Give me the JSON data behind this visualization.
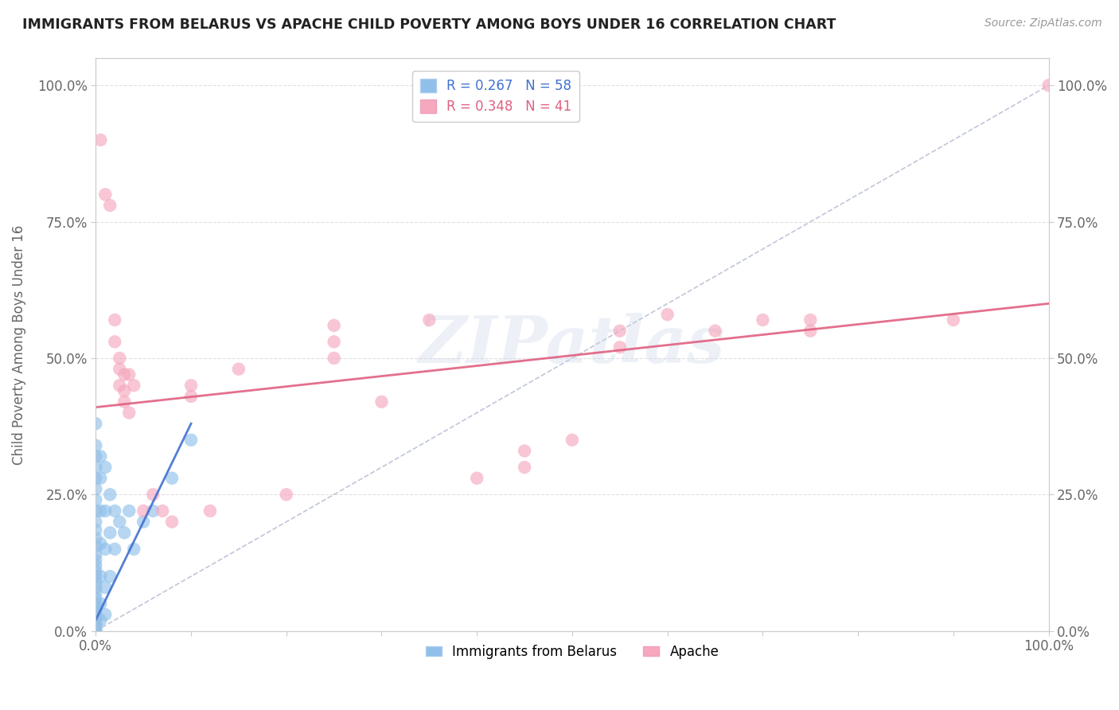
{
  "title": "IMMIGRANTS FROM BELARUS VS APACHE CHILD POVERTY AMONG BOYS UNDER 16 CORRELATION CHART",
  "source": "Source: ZipAtlas.com",
  "xlabel": "",
  "ylabel": "Child Poverty Among Boys Under 16",
  "xlim": [
    0,
    100
  ],
  "ylim": [
    0,
    105
  ],
  "xticks": [
    0,
    10,
    20,
    30,
    40,
    50,
    60,
    70,
    80,
    90,
    100
  ],
  "yticks": [
    0,
    25,
    50,
    75,
    100
  ],
  "xticklabels_show": [
    "0.0%",
    "",
    "",
    "",
    "",
    "",
    "",
    "",
    "",
    "",
    "100.0%"
  ],
  "yticklabels": [
    "0.0%",
    "25.0%",
    "50.0%",
    "75.0%",
    "100.0%"
  ],
  "legend_labels": [
    "Immigrants from Belarus",
    "Apache"
  ],
  "blue_R": 0.267,
  "blue_N": 58,
  "pink_R": 0.348,
  "pink_N": 41,
  "blue_color": "#90c0ea",
  "pink_color": "#f5a8be",
  "blue_line_color": "#4070d0",
  "pink_line_color": "#e06080",
  "diag_line_color": "#b0b8d0",
  "watermark": "ZIPatlas",
  "background_color": "#ffffff",
  "grid_color": "#e0e0e0",
  "blue_scatter": [
    [
      0.0,
      38.0
    ],
    [
      0.0,
      34.0
    ],
    [
      0.0,
      32.0
    ],
    [
      0.0,
      30.0
    ],
    [
      0.0,
      28.0
    ],
    [
      0.0,
      26.0
    ],
    [
      0.0,
      24.0
    ],
    [
      0.0,
      22.0
    ],
    [
      0.0,
      20.0
    ],
    [
      0.0,
      18.5
    ],
    [
      0.0,
      17.0
    ],
    [
      0.0,
      15.5
    ],
    [
      0.0,
      14.0
    ],
    [
      0.0,
      13.0
    ],
    [
      0.0,
      12.0
    ],
    [
      0.0,
      11.0
    ],
    [
      0.0,
      10.0
    ],
    [
      0.0,
      9.0
    ],
    [
      0.0,
      8.0
    ],
    [
      0.0,
      7.0
    ],
    [
      0.0,
      6.0
    ],
    [
      0.0,
      5.0
    ],
    [
      0.0,
      4.5
    ],
    [
      0.0,
      4.0
    ],
    [
      0.0,
      3.5
    ],
    [
      0.0,
      3.0
    ],
    [
      0.0,
      2.5
    ],
    [
      0.0,
      2.0
    ],
    [
      0.0,
      1.5
    ],
    [
      0.0,
      1.0
    ],
    [
      0.0,
      0.5
    ],
    [
      0.0,
      0.2
    ],
    [
      0.0,
      0.0
    ],
    [
      0.5,
      32.0
    ],
    [
      0.5,
      28.0
    ],
    [
      0.5,
      22.0
    ],
    [
      0.5,
      16.0
    ],
    [
      0.5,
      10.0
    ],
    [
      0.5,
      5.0
    ],
    [
      0.5,
      2.0
    ],
    [
      1.0,
      30.0
    ],
    [
      1.0,
      22.0
    ],
    [
      1.0,
      15.0
    ],
    [
      1.0,
      8.0
    ],
    [
      1.0,
      3.0
    ],
    [
      1.5,
      25.0
    ],
    [
      1.5,
      18.0
    ],
    [
      1.5,
      10.0
    ],
    [
      2.0,
      22.0
    ],
    [
      2.0,
      15.0
    ],
    [
      2.5,
      20.0
    ],
    [
      3.0,
      18.0
    ],
    [
      3.5,
      22.0
    ],
    [
      4.0,
      15.0
    ],
    [
      5.0,
      20.0
    ],
    [
      6.0,
      22.0
    ],
    [
      8.0,
      28.0
    ],
    [
      10.0,
      35.0
    ]
  ],
  "pink_scatter": [
    [
      0.5,
      90.0
    ],
    [
      1.0,
      80.0
    ],
    [
      1.5,
      78.0
    ],
    [
      2.0,
      57.0
    ],
    [
      2.0,
      53.0
    ],
    [
      2.5,
      50.0
    ],
    [
      2.5,
      48.0
    ],
    [
      2.5,
      45.0
    ],
    [
      3.0,
      47.0
    ],
    [
      3.0,
      44.0
    ],
    [
      3.0,
      42.0
    ],
    [
      3.5,
      40.0
    ],
    [
      3.5,
      47.0
    ],
    [
      4.0,
      45.0
    ],
    [
      5.0,
      22.0
    ],
    [
      6.0,
      25.0
    ],
    [
      7.0,
      22.0
    ],
    [
      8.0,
      20.0
    ],
    [
      10.0,
      45.0
    ],
    [
      10.0,
      43.0
    ],
    [
      12.0,
      22.0
    ],
    [
      15.0,
      48.0
    ],
    [
      20.0,
      25.0
    ],
    [
      25.0,
      50.0
    ],
    [
      25.0,
      53.0
    ],
    [
      25.0,
      56.0
    ],
    [
      30.0,
      42.0
    ],
    [
      35.0,
      57.0
    ],
    [
      40.0,
      28.0
    ],
    [
      45.0,
      33.0
    ],
    [
      45.0,
      30.0
    ],
    [
      50.0,
      35.0
    ],
    [
      55.0,
      55.0
    ],
    [
      55.0,
      52.0
    ],
    [
      60.0,
      58.0
    ],
    [
      65.0,
      55.0
    ],
    [
      70.0,
      57.0
    ],
    [
      75.0,
      57.0
    ],
    [
      75.0,
      55.0
    ],
    [
      90.0,
      57.0
    ],
    [
      100.0,
      100.0
    ]
  ],
  "blue_trend_x": [
    0.0,
    10.0
  ],
  "blue_trend_y": [
    2.0,
    38.0
  ],
  "pink_trend_x": [
    0.0,
    100.0
  ],
  "pink_trend_y": [
    41.0,
    60.0
  ],
  "diag_trend_x": [
    0.0,
    100.0
  ],
  "diag_trend_y": [
    0.0,
    100.0
  ]
}
